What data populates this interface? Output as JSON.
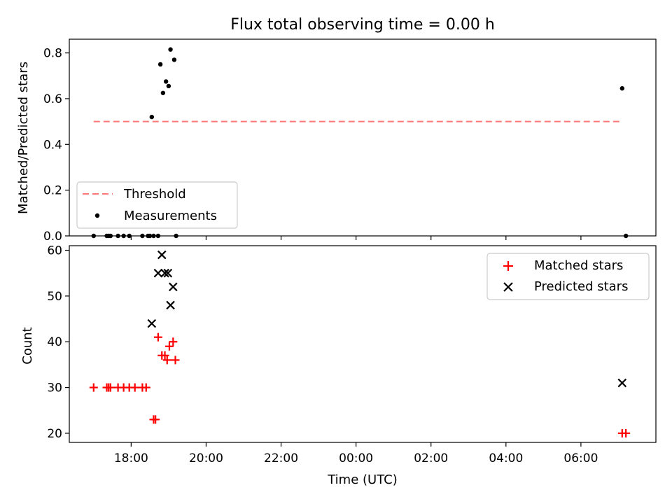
{
  "title": "Flux total observing time = 0.00 h",
  "chart_data": [
    {
      "type": "scatter",
      "title": "Flux total observing time = 0.00 h",
      "xlabel": "",
      "ylabel": "Matched/Predicted stars",
      "x_unit": "hours since 18:00 UTC",
      "xlim": [
        -1.65,
        14.0
      ],
      "ylim": [
        0.0,
        0.86
      ],
      "yticks": [
        0.0,
        0.2,
        0.4,
        0.6,
        0.8
      ],
      "ytick_labels": [
        "0.0",
        "0.2",
        "0.4",
        "0.6",
        "0.8"
      ],
      "legend_position": "lower-left",
      "threshold": {
        "name": "Threshold",
        "color": "#ff7777",
        "style": "dashed",
        "x": [
          -1.0,
          13.1
        ],
        "y": [
          0.5,
          0.5
        ]
      },
      "series": [
        {
          "name": "Measurements",
          "marker": "dot",
          "color": "#000000",
          "x": [
            -1.0,
            -0.65,
            -0.6,
            -0.55,
            -0.35,
            -0.2,
            -0.05,
            0.3,
            0.45,
            0.5,
            0.55,
            0.6,
            0.72,
            0.78,
            0.85,
            0.93,
            1.0,
            1.05,
            1.15,
            1.2,
            13.1,
            13.2
          ],
          "y": [
            0.0,
            0.0,
            0.0,
            0.0,
            0.0,
            0.0,
            0.0,
            0.0,
            0.0,
            0.0,
            0.52,
            0.0,
            0.0,
            0.75,
            0.625,
            0.675,
            0.655,
            0.815,
            0.77,
            0.0,
            0.645,
            0.0
          ]
        }
      ]
    },
    {
      "type": "scatter",
      "title": "",
      "xlabel": "Time (UTC)",
      "ylabel": "Count",
      "x_unit": "hours since 18:00 UTC",
      "xlim": [
        -1.65,
        14.0
      ],
      "ylim": [
        18,
        61
      ],
      "xticks": [
        0,
        2,
        4,
        6,
        8,
        10,
        12
      ],
      "xtick_labels": [
        "18:00",
        "20:00",
        "22:00",
        "00:00",
        "02:00",
        "04:00",
        "06:00"
      ],
      "yticks": [
        20,
        30,
        40,
        50,
        60
      ],
      "ytick_labels": [
        "20",
        "30",
        "40",
        "50",
        "60"
      ],
      "legend_position": "upper-right",
      "series": [
        {
          "name": "Matched stars",
          "marker": "plus",
          "color": "#ff0000",
          "x": [
            -1.0,
            -0.65,
            -0.6,
            -0.55,
            -0.35,
            -0.2,
            -0.05,
            0.1,
            0.3,
            0.4,
            0.6,
            0.65,
            0.72,
            0.82,
            0.9,
            0.96,
            1.02,
            1.12,
            1.18,
            13.1,
            13.2
          ],
          "y": [
            30,
            30,
            30,
            30,
            30,
            30,
            30,
            30,
            30,
            30,
            23,
            23,
            41,
            37,
            37,
            36,
            39,
            40,
            36,
            20,
            20
          ]
        },
        {
          "name": "Predicted stars",
          "marker": "x",
          "color": "#000000",
          "x": [
            0.55,
            0.72,
            0.82,
            0.9,
            0.98,
            1.05,
            1.12,
            13.1
          ],
          "y": [
            44,
            55,
            59,
            55,
            55,
            48,
            52,
            31
          ]
        }
      ]
    }
  ]
}
